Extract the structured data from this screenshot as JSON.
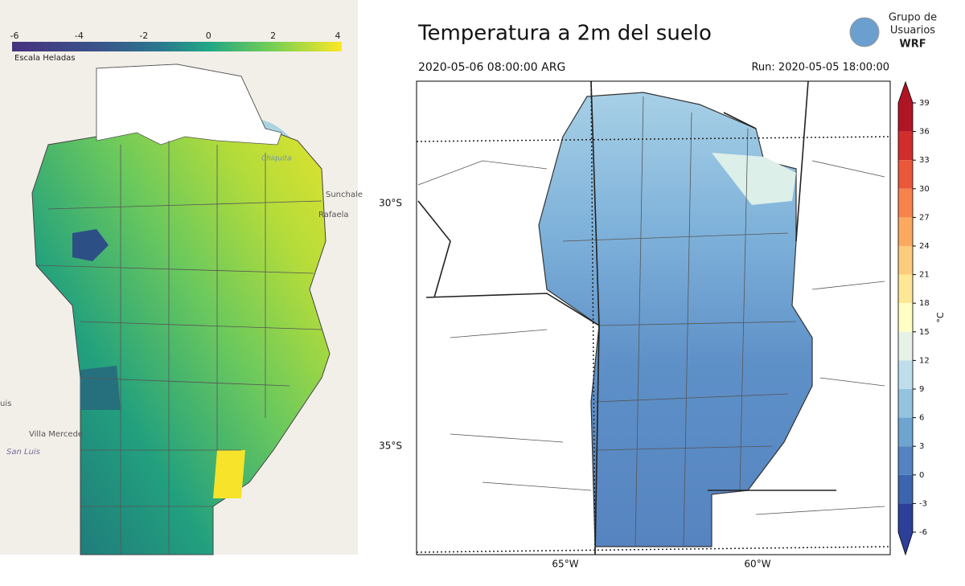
{
  "left_map": {
    "colorbar": {
      "ticks": [
        -6,
        -4,
        -2,
        0,
        2,
        4
      ],
      "label": "Escala Heladas"
    },
    "places": [
      "Sunchale",
      "Rafaela",
      "Villa Mercede",
      "San Luis",
      "uis",
      "Chiquita"
    ]
  },
  "right_map": {
    "title": "Temperatura a 2m del suelo",
    "logo": [
      "Grupo de",
      "Usuarios",
      "WRF"
    ],
    "valid_time": "2020-05-06 08:00:00 ARG",
    "run": "Run: 2020-05-05 18:00:00",
    "lat_labels": [
      "30°S",
      "35°S"
    ],
    "lon_labels": [
      "65°W",
      "60°W"
    ],
    "colorbar": {
      "unit": "°C",
      "ticks": [
        39,
        36,
        33,
        30,
        27,
        24,
        21,
        18,
        15,
        12,
        9,
        6,
        3,
        0,
        -3,
        -6
      ],
      "colors": [
        "#b01525",
        "#d12d2b",
        "#ea5739",
        "#f7824b",
        "#fca860",
        "#fdcb7c",
        "#fee896",
        "#ffffc4",
        "#e6f2e6",
        "#bfdeec",
        "#94c3e0",
        "#6fa4d1",
        "#5383c0",
        "#3b65ae",
        "#2c3f99"
      ]
    }
  }
}
